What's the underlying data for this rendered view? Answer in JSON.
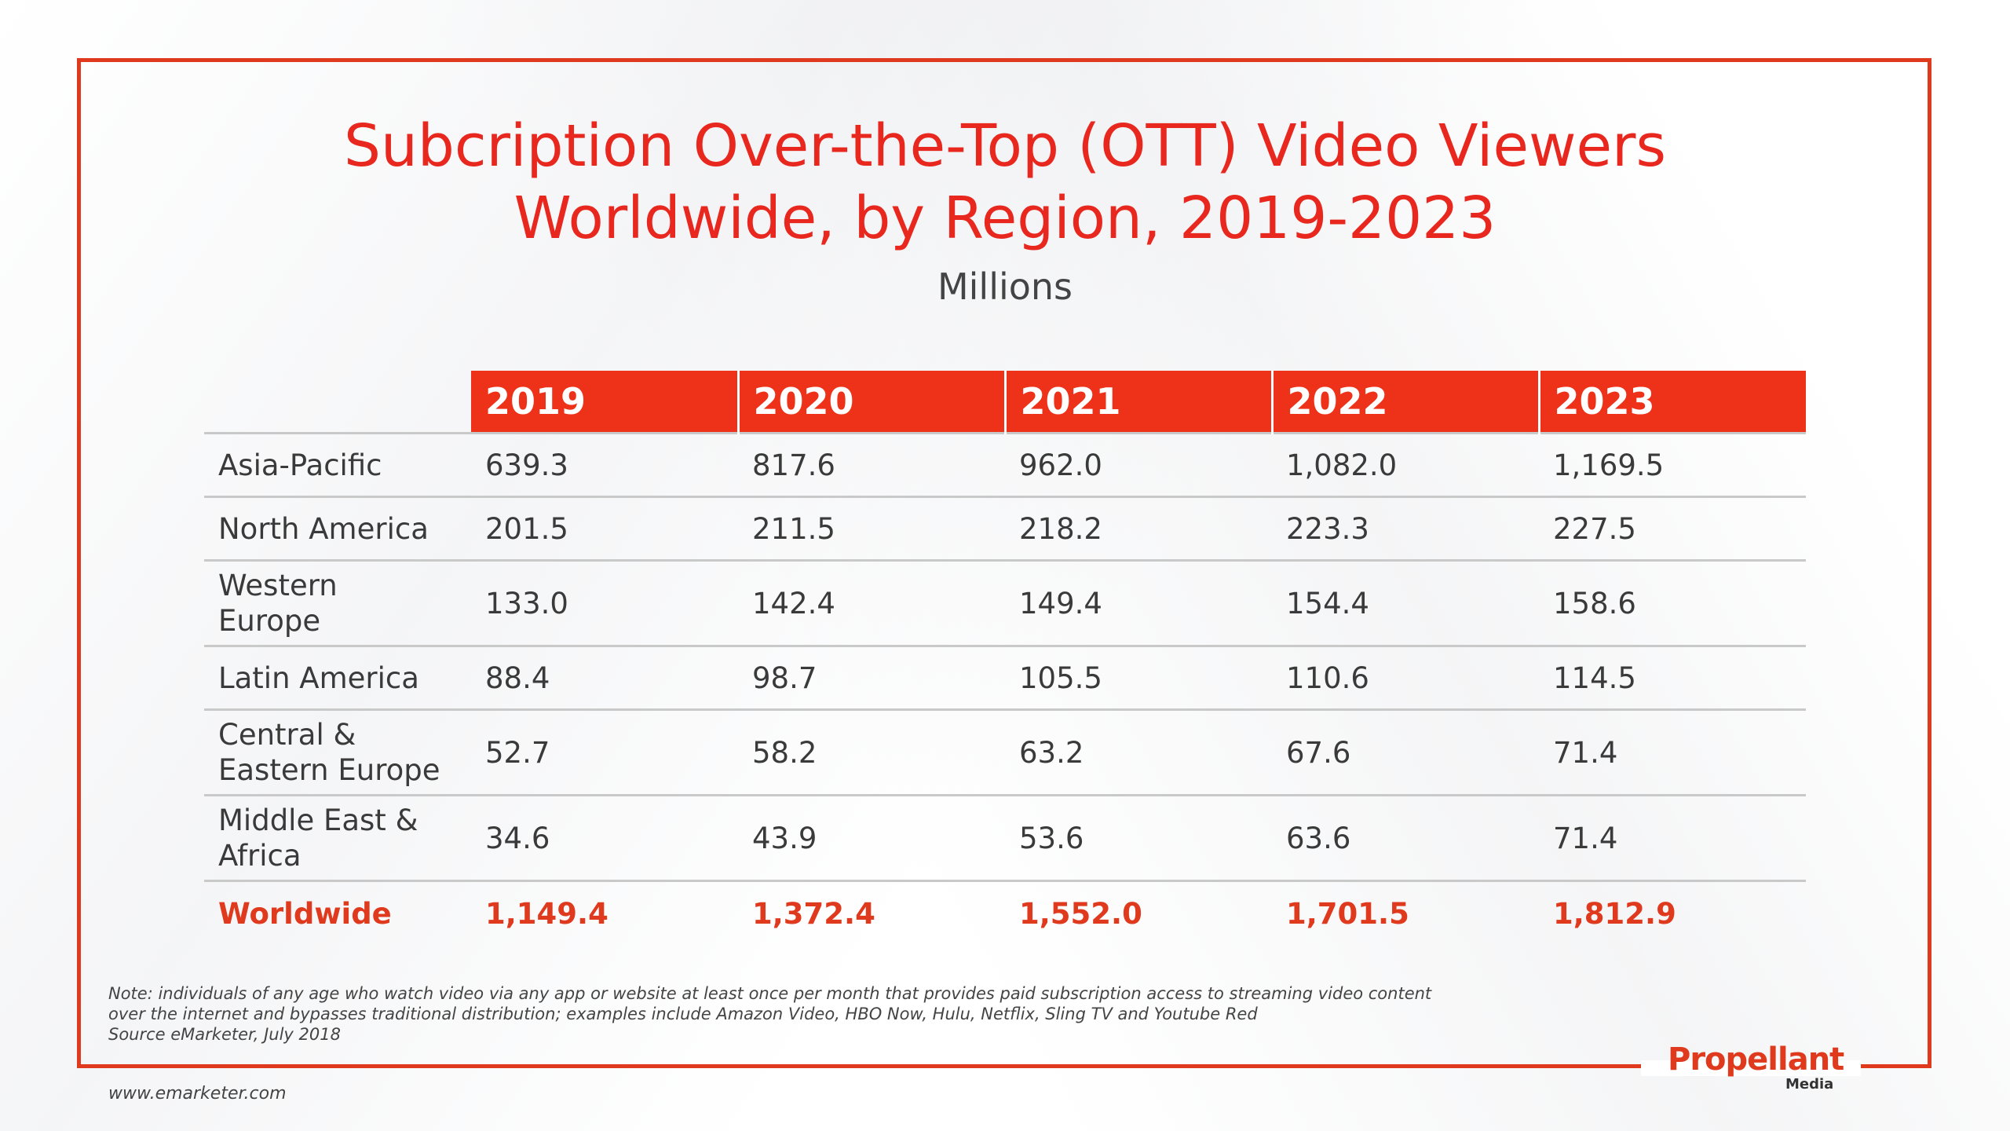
{
  "title_line1": "Subcription Over-the-Top (OTT) Video Viewers",
  "title_line2": "Worldwide, by Region, 2019-2023",
  "subtitle": "Millions",
  "chart_data": {
    "type": "table",
    "columns": [
      "2019",
      "2020",
      "2021",
      "2022",
      "2023"
    ],
    "rows": [
      {
        "label_lines": [
          "Asia-Pacific"
        ],
        "values": [
          "639.3",
          "817.6",
          "962.0",
          "1,082.0",
          "1,169.5"
        ]
      },
      {
        "label_lines": [
          "North America"
        ],
        "values": [
          "201.5",
          "211.5",
          "218.2",
          "223.3",
          "227.5"
        ]
      },
      {
        "label_lines": [
          "Western",
          "Europe"
        ],
        "values": [
          "133.0",
          "142.4",
          "149.4",
          "154.4",
          "158.6"
        ]
      },
      {
        "label_lines": [
          "Latin America"
        ],
        "values": [
          "88.4",
          "98.7",
          "105.5",
          "110.6",
          "114.5"
        ]
      },
      {
        "label_lines": [
          "Central &",
          "Eastern Europe"
        ],
        "values": [
          "52.7",
          "58.2",
          "63.2",
          "67.6",
          "71.4"
        ]
      },
      {
        "label_lines": [
          "Middle East &",
          "Africa"
        ],
        "values": [
          "34.6",
          "43.9",
          "53.6",
          "63.6",
          "71.4"
        ]
      }
    ],
    "total": {
      "label": "Worldwide",
      "values": [
        "1,149.4",
        "1,372.4",
        "1,552.0",
        "1,701.5",
        "1,812.9"
      ]
    }
  },
  "note_lines": [
    "Note: individuals of any age who watch video via any app or website at least once per month that provides paid subscription access to streaming video content",
    "over the internet and bypasses traditional distribution; examples include Amazon Video, HBO Now, Hulu, Netflix, Sling TV and Youtube Red",
    "Source eMarketer, July 2018"
  ],
  "url": "www.emarketer.com",
  "logo": {
    "main": "Propellant",
    "sub": "Media"
  },
  "colors": {
    "accent": "#e03a1e",
    "header_bg": "#ee3219"
  }
}
